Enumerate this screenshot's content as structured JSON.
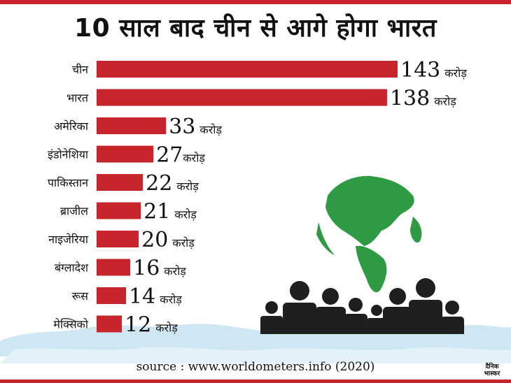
{
  "title": "10 साल बाद चीन से आगे होगा भारत",
  "source": "source : www.worldometers.info (2020)",
  "logo": {
    "line1": "दैनिक",
    "line2": "भास्कर"
  },
  "colors": {
    "bar": "#c8242b",
    "accent": "#c8242b",
    "globe": "#2e9a44",
    "map": "#cfe6f3",
    "people": "#1f1f1f"
  },
  "icons": [
    "globe-icon",
    "people-silhouettes-icon",
    "world-map-background"
  ],
  "chart_data": {
    "type": "bar",
    "orientation": "horizontal",
    "categories": [
      "चीन",
      "भारत",
      "अमेरिका",
      "इंडोनेशिया",
      "पाकिस्तान",
      "ब्राजील",
      "नाइजेरिया",
      "बंग्लादेश",
      "रूस",
      "मेक्सिको"
    ],
    "values": [
      143,
      138,
      33,
      27,
      22,
      21,
      20,
      16,
      14,
      12
    ],
    "value_labels": [
      "143 करोड़",
      "138 करोड़",
      "33 करोड़",
      "27करोड़",
      "22 करोड़",
      "21 करोड़",
      "20 करोड़",
      "16 करोड़",
      "14 करोड़",
      "12 करोड़"
    ],
    "xlim": [
      0,
      143
    ],
    "grid": false,
    "legend": "none"
  }
}
